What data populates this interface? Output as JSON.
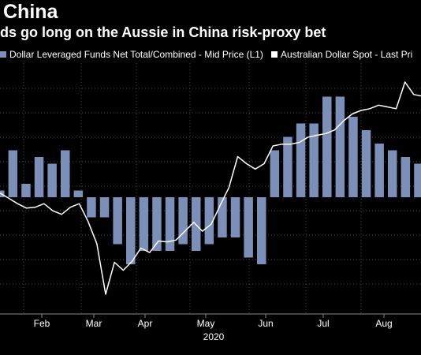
{
  "header": {
    "title": "China",
    "subtitle": "ds go long on the Aussie in China risk-proxy bet"
  },
  "legend": [
    {
      "label": "Dollar Leveraged Funds Net Total/Combined - Mid Price (L1)",
      "color": "#7b8fb8"
    },
    {
      "label": "Australian Dollar Spot - Last Pri",
      "color": "#ffffff"
    }
  ],
  "colors": {
    "background": "#000000",
    "bars": "#7b8fb8",
    "line": "#ffffff",
    "grid": "#4a4a4a"
  },
  "chart_data": {
    "type": "bar",
    "x_tick_labels": [
      "Feb",
      "Mar",
      "Apr",
      "May",
      "Jun",
      "Jul",
      "Aug"
    ],
    "year_label": "2020",
    "grid": true,
    "series": [
      {
        "name": "Dollar Leveraged Funds Net Total/Combined - Mid Price (L1)",
        "type": "bar",
        "values": [
          1,
          7,
          2,
          6,
          5,
          7,
          1,
          -3,
          -3,
          -7,
          -10,
          -8,
          -8,
          -8,
          -7,
          -8,
          -7,
          -6,
          -6,
          -9,
          -10,
          7,
          9,
          11,
          11,
          15,
          15,
          12,
          10,
          8,
          7,
          6,
          5
        ]
      },
      {
        "name": "Australian Dollar Spot - Last Pri",
        "type": "line",
        "values": [
          0.672,
          0.669,
          0.666,
          0.6635,
          0.664,
          0.666,
          0.662,
          0.66,
          0.664,
          0.666,
          0.656,
          0.6435,
          0.615,
          0.633,
          0.6285,
          0.6335,
          0.641,
          0.6385,
          0.645,
          0.6445,
          0.6455,
          0.6505,
          0.6555,
          0.6505,
          0.6545,
          0.665,
          0.675,
          0.6925,
          0.6885,
          0.6855,
          0.6885,
          0.6985,
          0.6995,
          0.6995,
          0.7005,
          0.7035,
          0.7045,
          0.7055,
          0.7075,
          0.7125,
          0.7165,
          0.7185,
          0.7195,
          0.7215,
          0.7205,
          0.7195,
          0.7345,
          0.7275,
          0.7265
        ]
      }
    ]
  }
}
